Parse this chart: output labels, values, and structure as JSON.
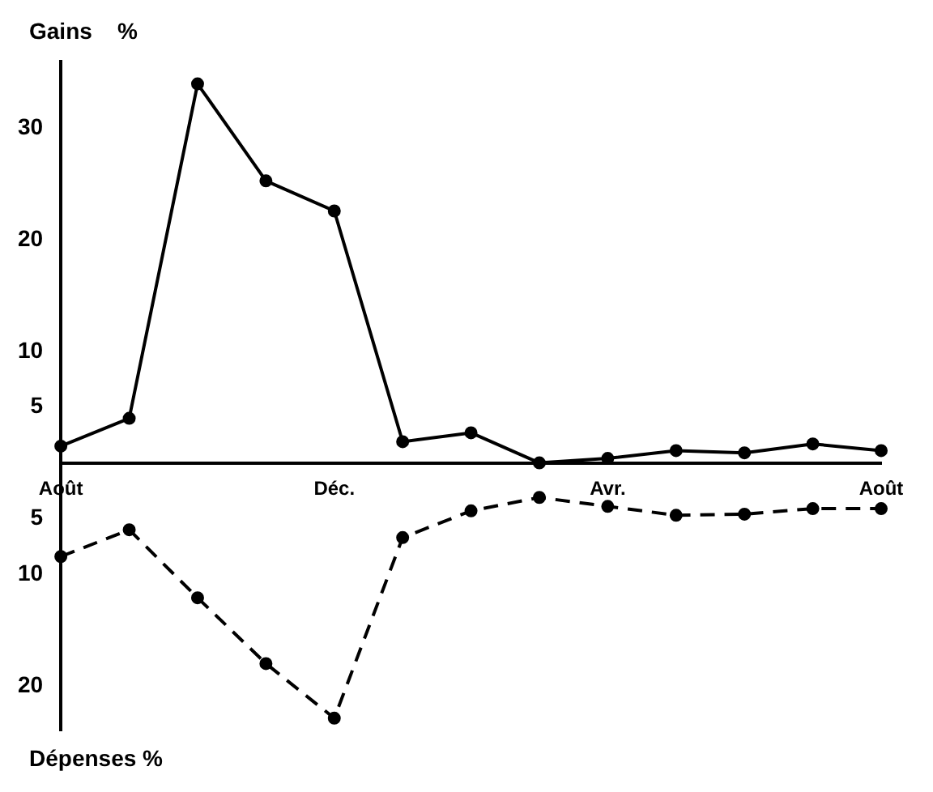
{
  "chart_data": {
    "type": "line",
    "categories": [
      "Août",
      null,
      null,
      null,
      "Déc.",
      null,
      null,
      null,
      "Avr.",
      null,
      null,
      null,
      "Août"
    ],
    "series": [
      {
        "color": "#000000",
        "line_style": "solid",
        "values": [
          1.5,
          4,
          34,
          25.3,
          22.6,
          1.9,
          2.7,
          0,
          0.4,
          1.1,
          0.9,
          1.7,
          1.1
        ]
      },
      {
        "color": "#000000",
        "line_style": "dashed",
        "values": [
          -8.4,
          -6,
          -12.1,
          -18,
          -22.9,
          -6.7,
          -4.3,
          -3.1,
          -3.9,
          -4.7,
          -4.6,
          -4.1,
          -4.1
        ]
      }
    ],
    "ylim": [
      -24,
      36
    ],
    "yticks": [
      {
        "value": -20,
        "label": "20"
      },
      {
        "value": -10,
        "label": "10"
      },
      {
        "value": -5,
        "label": "5"
      },
      5,
      10,
      20,
      30
    ],
    "annotations": [
      "Gains    %",
      "Dépenses %"
    ],
    "marker": "circle",
    "grid": false,
    "legend": false
  }
}
